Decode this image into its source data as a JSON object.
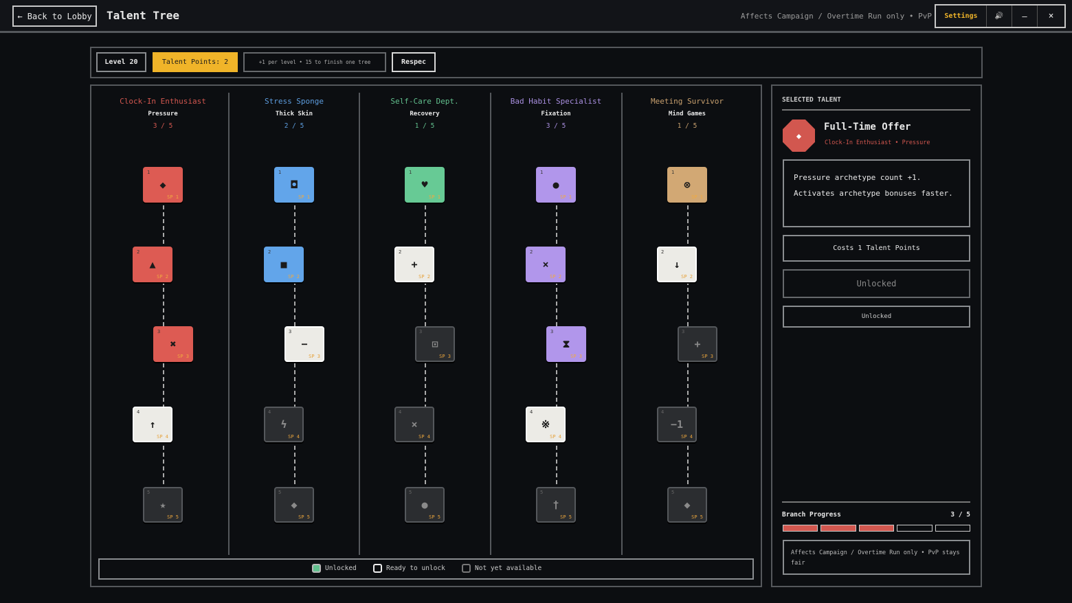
{
  "header": {
    "back": "← Back to Lobby",
    "title": "Talent Tree",
    "note": "Affects Campaign / Overtime Run only • PvP",
    "settings": "Settings",
    "sound": "🔊",
    "minimize": "–",
    "close": "×"
  },
  "toolbar": {
    "level": "Level 20",
    "points": "Talent Points: 2",
    "hint": "+1 per level • 15 to finish one tree",
    "respec": "Respec"
  },
  "state_colors": {
    "ready": "#ecebe6",
    "locked": "#2b2d30"
  },
  "branches": [
    {
      "name": "Clock-In Enthusiast",
      "archetype": "Pressure",
      "progress": "3 / 5",
      "color": "#d2574f",
      "nodes": [
        {
          "tier": "1",
          "icon": "◆",
          "cost": "SP 1",
          "state": "unlocked"
        },
        {
          "tier": "2",
          "icon": "▲",
          "cost": "SP 2",
          "state": "unlocked"
        },
        {
          "tier": "3",
          "icon": "✖",
          "cost": "SP 3",
          "state": "unlocked"
        },
        {
          "tier": "4",
          "icon": "↑",
          "cost": "SP 4",
          "state": "ready"
        },
        {
          "tier": "5",
          "icon": "★",
          "cost": "SP 5",
          "state": "locked"
        }
      ]
    },
    {
      "name": "Stress Sponge",
      "archetype": "Thick Skin",
      "progress": "2 / 5",
      "color": "#5d9ddf",
      "nodes": [
        {
          "tier": "1",
          "icon": "◘",
          "cost": "SP 1",
          "state": "unlocked"
        },
        {
          "tier": "2",
          "icon": "■",
          "cost": "SP 2",
          "state": "unlocked"
        },
        {
          "tier": "3",
          "icon": "−",
          "cost": "SP 3",
          "state": "ready"
        },
        {
          "tier": "4",
          "icon": "ϟ",
          "cost": "SP 4",
          "state": "locked"
        },
        {
          "tier": "5",
          "icon": "◆",
          "cost": "SP 5",
          "state": "locked"
        }
      ]
    },
    {
      "name": "Self-Care Dept.",
      "archetype": "Recovery",
      "progress": "1 / 5",
      "color": "#62c08e",
      "nodes": [
        {
          "tier": "1",
          "icon": "♥",
          "cost": "SP 1",
          "state": "unlocked"
        },
        {
          "tier": "2",
          "icon": "+",
          "cost": "SP 2",
          "state": "ready"
        },
        {
          "tier": "3",
          "icon": "⊡",
          "cost": "SP 3",
          "state": "locked"
        },
        {
          "tier": "4",
          "icon": "×",
          "cost": "SP 4",
          "state": "locked"
        },
        {
          "tier": "5",
          "icon": "●",
          "cost": "SP 5",
          "state": "locked"
        }
      ]
    },
    {
      "name": "Bad Habit Specialist",
      "archetype": "Fixation",
      "progress": "3 / 5",
      "color": "#a98fe0",
      "nodes": [
        {
          "tier": "1",
          "icon": "●",
          "cost": "SP 1",
          "state": "unlocked"
        },
        {
          "tier": "2",
          "icon": "×",
          "cost": "SP 2",
          "state": "unlocked"
        },
        {
          "tier": "3",
          "icon": "⧗",
          "cost": "SP 3",
          "state": "unlocked"
        },
        {
          "tier": "4",
          "icon": "※",
          "cost": "SP 4",
          "state": "ready"
        },
        {
          "tier": "5",
          "icon": "†",
          "cost": "SP 5",
          "state": "locked"
        }
      ]
    },
    {
      "name": "Meeting Survivor",
      "archetype": "Mind Games",
      "progress": "1 / 5",
      "color": "#c8a06e",
      "nodes": [
        {
          "tier": "1",
          "icon": "⊗",
          "cost": "SP 1",
          "state": "unlocked"
        },
        {
          "tier": "2",
          "icon": "↓",
          "cost": "SP 2",
          "state": "ready"
        },
        {
          "tier": "3",
          "icon": "+",
          "cost": "SP 3",
          "state": "locked"
        },
        {
          "tier": "4",
          "icon": "−1",
          "cost": "SP 4",
          "state": "locked"
        },
        {
          "tier": "5",
          "icon": "◆",
          "cost": "SP 5",
          "state": "locked"
        }
      ]
    }
  ],
  "legend": {
    "unlocked": "Unlocked",
    "ready": "Ready to unlock",
    "locked": "Not yet available"
  },
  "selected": {
    "heading": "SELECTED TALENT",
    "icon": "◆",
    "name": "Full-Time Offer",
    "subtitle": "Clock-In Enthusiast • Pressure",
    "description": "Pressure archetype count +1. Activates archetype bonuses faster.",
    "cost": "Costs 1 Talent Points",
    "status": "Unlocked",
    "button": "Unlocked",
    "progress_label": "Branch Progress",
    "progress": "3 / 5",
    "footnote": "Affects Campaign / Overtime Run only • PvP stays fair"
  }
}
